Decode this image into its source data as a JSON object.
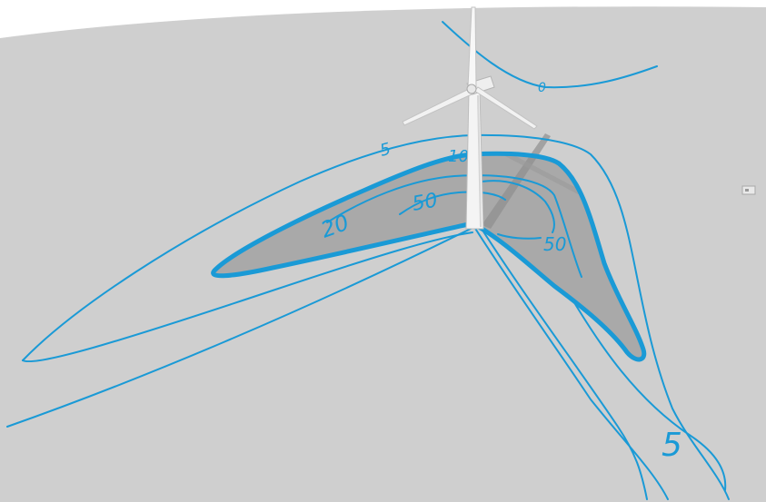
{
  "scene": {
    "ground_color": "#cfcfcf",
    "shadow_color": "#a9a9a9",
    "contour_color": "#1a9ad6",
    "turbine_color": "#f4f4f4",
    "icon": "wind-turbine"
  },
  "contour_labels": {
    "zero": "0",
    "five_upper": "5",
    "ten": "10",
    "fifty_left": "50",
    "twenty": "20",
    "fifty_right": "50",
    "five_lower": "5"
  }
}
